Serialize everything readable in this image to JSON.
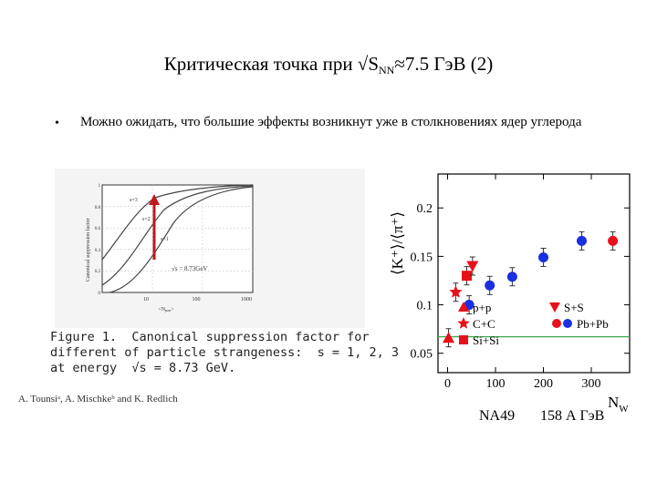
{
  "slide": {
    "title_main": "Критическая точка при √S",
    "title_sub": "NN",
    "title_rest": "≈7.5 ГэВ    (2)",
    "bullet_char": "•",
    "bullet_text": "Можно ожидать, что большие эффекты возникнут уже в столкновениях ядер углерода"
  },
  "left_figure": {
    "ylabel": "Canonical suppression factor",
    "xlabel": "<N",
    "xlabel_sub": "part",
    "xlabel_end": ">",
    "energy_label": "√s = 8.73GeV",
    "curve_labels": [
      "s=3",
      "s=2",
      "s=1"
    ],
    "x_ticks": [
      "10",
      "100",
      "1000"
    ],
    "y_ticks": [
      "1",
      "0.8",
      "0.6",
      "0.4",
      "0.2",
      "0"
    ],
    "caption_line1": "Figure 1.  Canonical suppression factor for",
    "caption_line2": "different of particle strangeness:  s = 1, 2, 3",
    "caption_line3": "at energy  √s = 8.73 GeV.",
    "credit": "A. Tounsiᵃ, A. Mischkeᵇ and K. Redlich"
  },
  "chart_data": {
    "type": "scatter",
    "ylabel": "⟨K⁺⟩/⟨π⁺⟩",
    "xlabel": "N",
    "xlabel_sub": "W",
    "xlim": [
      -20,
      380
    ],
    "ylim": [
      0.03,
      0.235
    ],
    "x_ticks": [
      0,
      100,
      200,
      300
    ],
    "y_ticks": [
      0.05,
      0.1,
      0.15,
      0.2
    ],
    "reference_line_y": 0.067,
    "series": [
      {
        "name": "p+p",
        "marker": "triangle-up",
        "color": "#e8101a",
        "points": [
          [
            2,
            0.066
          ]
        ]
      },
      {
        "name": "C+C",
        "marker": "star",
        "color": "#e8101a",
        "points": [
          [
            17,
            0.113
          ]
        ]
      },
      {
        "name": "Si+Si",
        "marker": "square",
        "color": "#e8101a",
        "points": [
          [
            40,
            0.13
          ]
        ]
      },
      {
        "name": "S+S",
        "marker": "triangle-down",
        "color": "#e8101a",
        "points": [
          [
            52,
            0.14
          ]
        ]
      },
      {
        "name": "Pb+Pb",
        "marker": "circle",
        "color": "#1a2fe0",
        "points": [
          [
            45,
            0.1
          ],
          [
            88,
            0.12
          ],
          [
            135,
            0.129
          ],
          [
            200,
            0.149
          ],
          [
            280,
            0.166
          ]
        ]
      },
      {
        "name": "Pb+Pb",
        "marker": "circle",
        "color": "#e8101a",
        "points": [
          [
            345,
            0.166
          ]
        ]
      }
    ],
    "legend": [
      "p+p",
      "S+S",
      "C+C",
      "Pb+Pb",
      "Si+Si"
    ]
  },
  "footer": {
    "left": "NA49",
    "right": "158 А ГэВ"
  }
}
